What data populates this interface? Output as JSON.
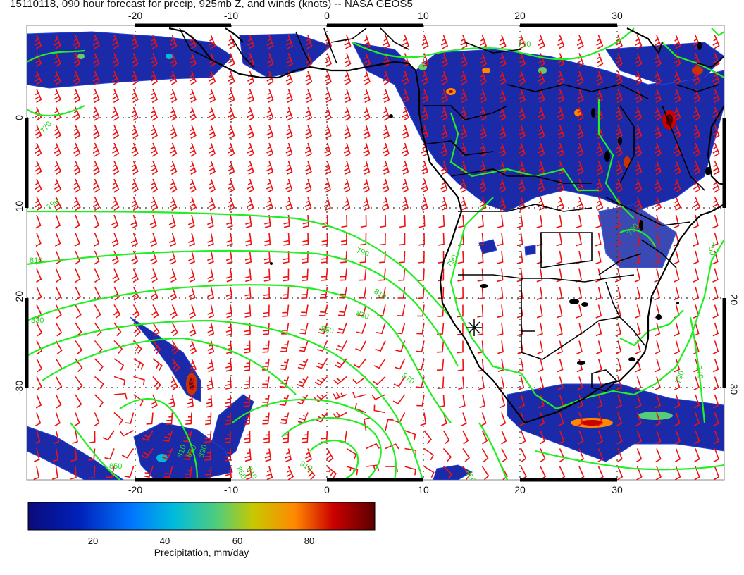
{
  "title": "15110118, 090 hour forecast for precip, 925mb Z, and winds (knots) -- NASA GEOS5",
  "map": {
    "lon_range": [
      -30,
      40
    ],
    "lat_range": [
      -39,
      10
    ],
    "lon_ticks_top": [
      "-20",
      "-10",
      "0",
      "10",
      "20",
      "30"
    ],
    "lon_ticks_bottom": [
      "-20",
      "-10",
      "0",
      "10",
      "20",
      "30"
    ],
    "lat_ticks_left": [
      "0",
      "-10",
      "-20",
      "-30"
    ],
    "lat_ticks_right": [
      "-20",
      "-30"
    ],
    "contour_color": "#22ee22",
    "coast_color": "#000000",
    "barb_color": "#ee1111",
    "contour_labels": [
      "790",
      "770",
      "790",
      "810",
      "790",
      "810",
      "830",
      "850",
      "870",
      "830",
      "850",
      "770",
      "790",
      "850",
      "870",
      "910",
      "890",
      "790",
      "750",
      "810",
      "790",
      "810",
      "850"
    ],
    "marker": "+"
  },
  "colorbar": {
    "ticks": [
      "20",
      "40",
      "60",
      "80"
    ],
    "label": "Precipitation, mm/day",
    "stops": [
      "#0a0a7a",
      "#0033cc",
      "#0099ff",
      "#00cccc",
      "#66cc66",
      "#cccc00",
      "#ff8800",
      "#cc0000",
      "#660000"
    ]
  }
}
